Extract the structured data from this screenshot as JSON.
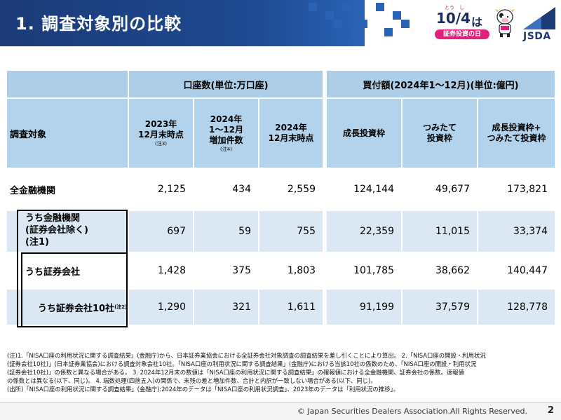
{
  "header": {
    "title": "1. 調査対象別の比較",
    "logo": {
      "date": "10/4",
      "ha": "は",
      "ruby": "とう　し",
      "pill": "証券投資の日",
      "org": "JSDA",
      "mascot_icon": "cow-mascot-icon"
    }
  },
  "table": {
    "group_headers": {
      "accounts": "口座数(単位:万口座)",
      "purchases": "買付額(2024年1～12月)(単位:億円)"
    },
    "target_label": "調査対象",
    "columns": [
      {
        "line1": "2023年",
        "line2": "12月末時点",
        "note": "(注3)"
      },
      {
        "line1": "2024年",
        "line2": "1～12月",
        "line3": "増加件数",
        "note": "(注4)"
      },
      {
        "line1": "2024年",
        "line2": "12月末時点"
      },
      {
        "line1": "成長投資枠"
      },
      {
        "line1": "つみたて",
        "line2": "投資枠"
      },
      {
        "line1": "成長投資枠+",
        "line2": "つみたて投資枠"
      }
    ],
    "rows": [
      {
        "label": "全金融機関",
        "values": [
          "2,125",
          "434",
          "2,559",
          "124,144",
          "49,677",
          "173,821"
        ]
      },
      {
        "label1": "うち金融機関",
        "label2": "(証券会社除く)",
        "label3": "(注1)",
        "values": [
          "697",
          "59",
          "755",
          "22,359",
          "11,015",
          "33,374"
        ]
      },
      {
        "label": "うち証券会社",
        "values": [
          "1,428",
          "375",
          "1,803",
          "101,785",
          "38,662",
          "140,447"
        ]
      },
      {
        "label": "うち証券会社10社",
        "note": "(注2)",
        "values": [
          "1,290",
          "321",
          "1,611",
          "91,199",
          "37,579",
          "128,778"
        ]
      }
    ]
  },
  "notes": [
    "(注)1.「NISA口座の利用状況に関する調査結果」(金融庁)から、日本証券業協会における全証券会社対象調査の調査結果を差し引くことにより算出。 2.「NISA口座の開設・利用状況",
    "(証券会社10社)」(日本証券業協会)における調査対象会社10社。「NISA口座の利用状況に関する調査結果」(金融庁)における当該10社の係数のため、「NISA口座の開設・利用状況",
    "(証券会社10社)」の係数と異なる場合がある。 3. 2024年12月末の数値は「NISA口座の利用状況に関する調査結果」の確報値における全金融機関、証券会社の係数。速報値",
    "の係数とは異なる(以下、同じ)。 4. 端数処理(四捨五入)の関係で、末残の差と増加件数、合計と内訳が一致しない場合がある(以下、同じ)。",
    "(出所)「NISA口座の利用状況に関する調査結果」(金融庁):2024年のデータは「NISA口座の利用状況調査」、2023年のデータは「利用状況の推移」。"
  ],
  "footer": {
    "copyright": "© Japan Securities Dealers Association.All Rights Reserved.",
    "page": "2"
  },
  "colors": {
    "title_bar": "#1e4a92",
    "header_cell": "#aecde6",
    "row_shade": "#dbe8f4",
    "accent_pink": "#e0207a"
  }
}
